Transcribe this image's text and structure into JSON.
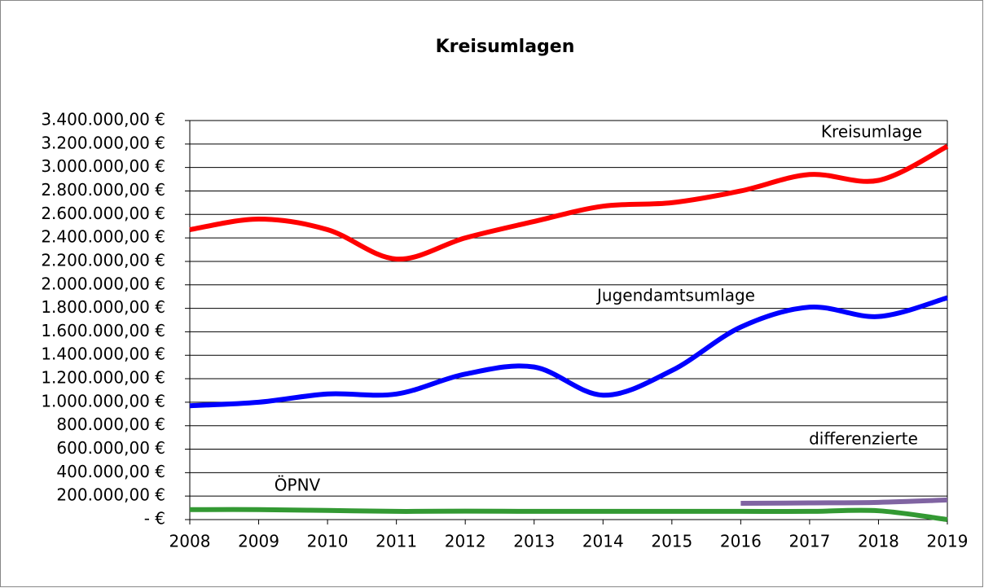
{
  "chart_data": {
    "type": "line",
    "title": "Kreisumlagen",
    "x": [
      2008,
      2009,
      2010,
      2011,
      2012,
      2013,
      2014,
      2015,
      2016,
      2017,
      2018,
      2019
    ],
    "xlim": [
      2008,
      2019
    ],
    "xticks": [
      2008,
      2009,
      2010,
      2011,
      2012,
      2013,
      2014,
      2015,
      2016,
      2017,
      2018,
      2019
    ],
    "ylim": [
      0,
      3400000
    ],
    "yticks": [
      {
        "value": 0,
        "label": "-   €"
      },
      {
        "value": 200000,
        "label": "200.000,00 €"
      },
      {
        "value": 400000,
        "label": "400.000,00 €"
      },
      {
        "value": 600000,
        "label": "600.000,00 €"
      },
      {
        "value": 800000,
        "label": "800.000,00 €"
      },
      {
        "value": 1000000,
        "label": "1.000.000,00 €"
      },
      {
        "value": 1200000,
        "label": "1.200.000,00 €"
      },
      {
        "value": 1400000,
        "label": "1.400.000,00 €"
      },
      {
        "value": 1600000,
        "label": "1.600.000,00 €"
      },
      {
        "value": 1800000,
        "label": "1.800.000,00 €"
      },
      {
        "value": 2000000,
        "label": "2.000.000,00 €"
      },
      {
        "value": 2200000,
        "label": "2.200.000,00 €"
      },
      {
        "value": 2400000,
        "label": "2.400.000,00 €"
      },
      {
        "value": 2600000,
        "label": "2.600.000,00 €"
      },
      {
        "value": 2800000,
        "label": "2.800.000,00 €"
      },
      {
        "value": 3000000,
        "label": "3.000.000,00 €"
      },
      {
        "value": 3200000,
        "label": "3.200.000,00 €"
      },
      {
        "value": 3400000,
        "label": "3.400.000,00 €"
      }
    ],
    "grid": true,
    "series": [
      {
        "name": "Kreisumlage",
        "color": "#ff0000",
        "values": [
          2470000,
          2560000,
          2470000,
          2220000,
          2400000,
          2540000,
          2670000,
          2700000,
          2800000,
          2940000,
          2890000,
          3180000
        ]
      },
      {
        "name": "Jugendamtsumlage",
        "color": "#0000ff",
        "values": [
          970000,
          1000000,
          1070000,
          1070000,
          1240000,
          1300000,
          1060000,
          1270000,
          1640000,
          1810000,
          1730000,
          1890000
        ]
      },
      {
        "name": "differenzierte",
        "color": "#8064a2",
        "values": [
          null,
          null,
          null,
          null,
          null,
          null,
          null,
          null,
          139000,
          142000,
          147000,
          167000
        ]
      },
      {
        "name": "ÖPNV",
        "color": "#339933",
        "values": [
          85000,
          85000,
          78000,
          70000,
          72000,
          70000,
          70000,
          70000,
          70000,
          70000,
          75000,
          0
        ]
      }
    ]
  }
}
